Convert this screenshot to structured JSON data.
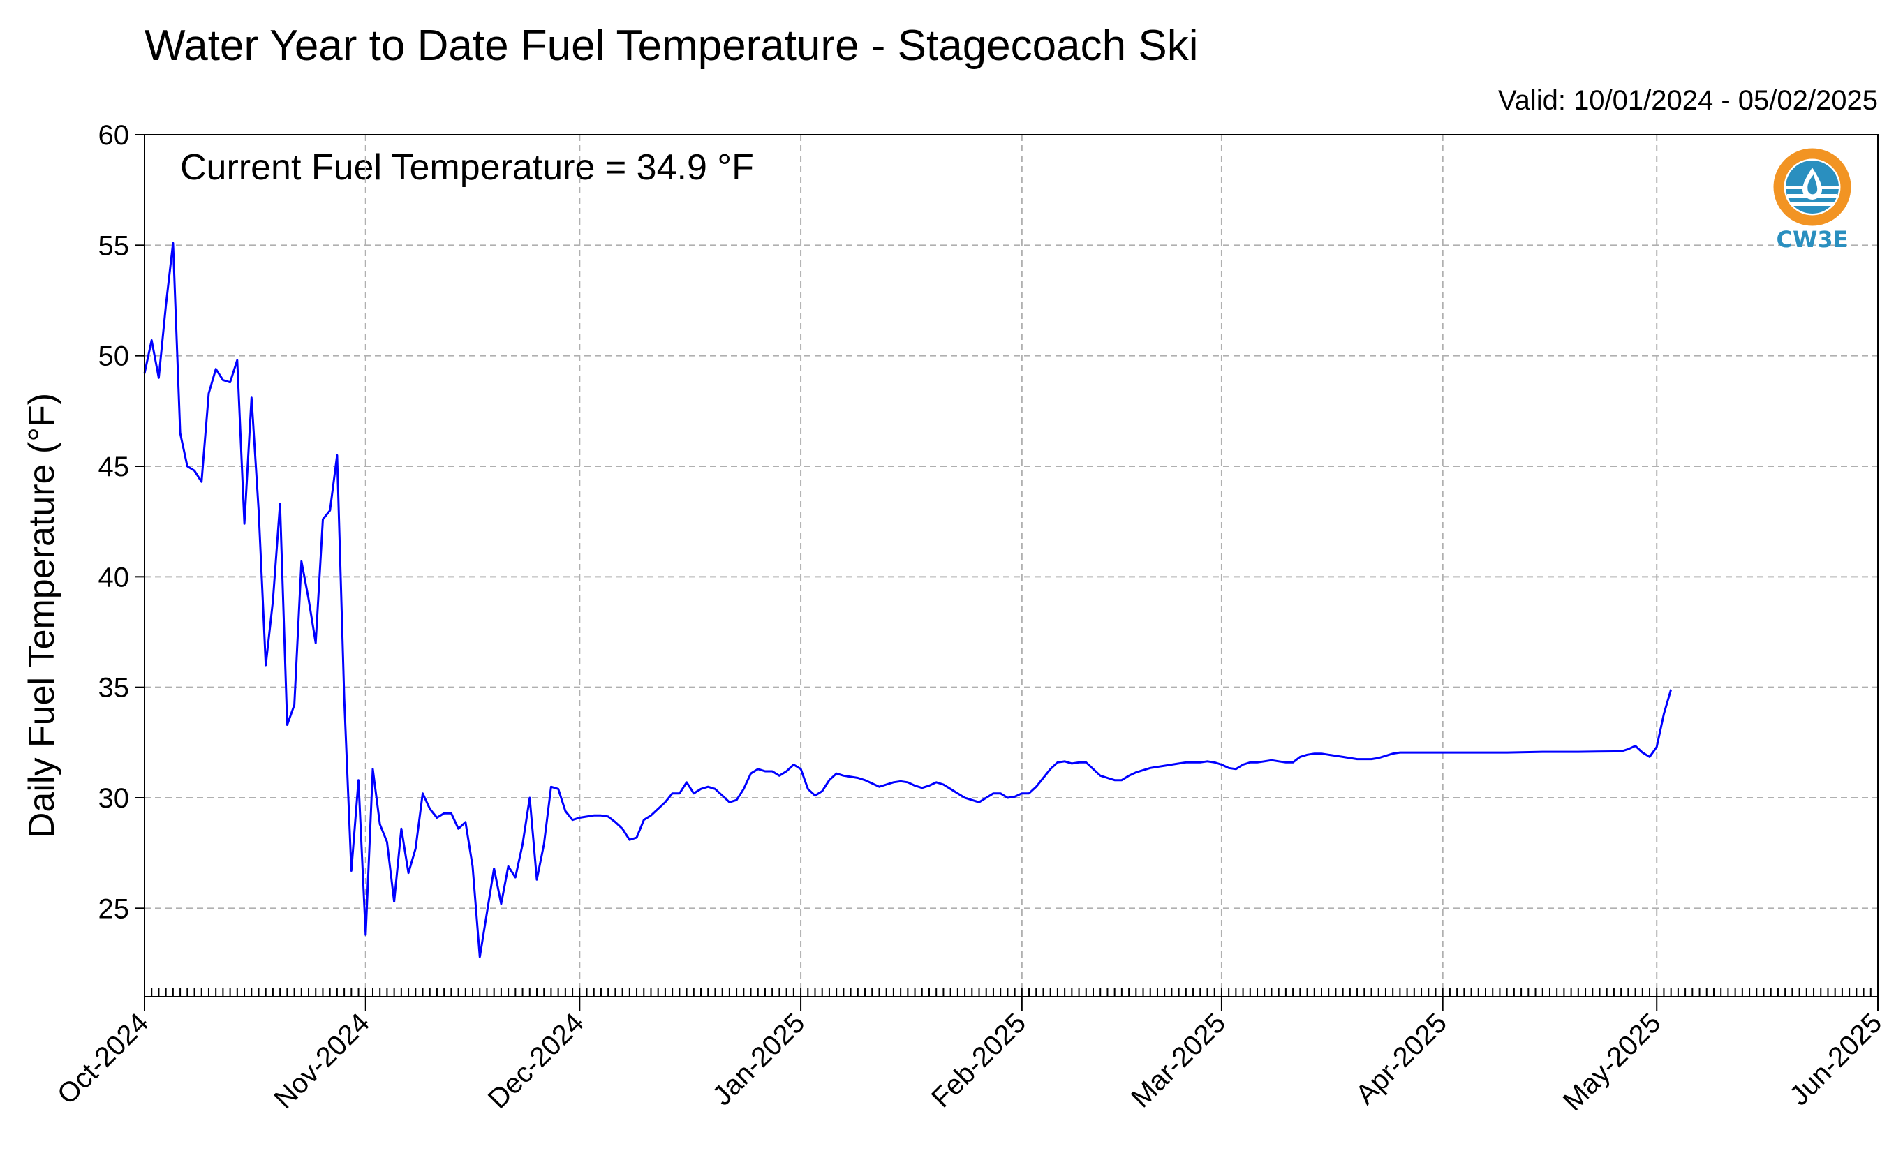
{
  "chart_data": {
    "type": "line",
    "title": "Water Year to Date Fuel Temperature - Stagecoach Ski",
    "subtitle": "Valid: 10/01/2024 - 05/02/2025",
    "annotation": "Current Fuel Temperature = 34.9  °F",
    "ylabel": "Daily Fuel Temperature (°F)",
    "xlabel": "",
    "ylim": [
      21,
      60
    ],
    "yticks": [
      25,
      30,
      35,
      40,
      45,
      50,
      55,
      60
    ],
    "xlim": [
      "2024-10-01",
      "2025-06-01"
    ],
    "xticks": [
      {
        "date": "2024-10-01",
        "label": "Oct-2024"
      },
      {
        "date": "2024-11-01",
        "label": "Nov-2024"
      },
      {
        "date": "2024-12-01",
        "label": "Dec-2024"
      },
      {
        "date": "2025-01-01",
        "label": "Jan-2025"
      },
      {
        "date": "2025-02-01",
        "label": "Feb-2025"
      },
      {
        "date": "2025-03-01",
        "label": "Mar-2025"
      },
      {
        "date": "2025-04-01",
        "label": "Apr-2025"
      },
      {
        "date": "2025-05-01",
        "label": "May-2025"
      },
      {
        "date": "2025-06-01",
        "label": "Jun-2025"
      }
    ],
    "grid": true,
    "line_color": "#0000ff",
    "series": [
      {
        "name": "",
        "points": [
          [
            "2024-10-01",
            49.2
          ],
          [
            "2024-10-02",
            50.7
          ],
          [
            "2024-10-03",
            49.0
          ],
          [
            "2024-10-04",
            52.3
          ],
          [
            "2024-10-05",
            55.1
          ],
          [
            "2024-10-06",
            46.5
          ],
          [
            "2024-10-07",
            45.0
          ],
          [
            "2024-10-08",
            44.8
          ],
          [
            "2024-10-09",
            44.3
          ],
          [
            "2024-10-10",
            48.3
          ],
          [
            "2024-10-11",
            49.4
          ],
          [
            "2024-10-12",
            48.9
          ],
          [
            "2024-10-13",
            48.8
          ],
          [
            "2024-10-14",
            49.8
          ],
          [
            "2024-10-15",
            42.4
          ],
          [
            "2024-10-16",
            48.1
          ],
          [
            "2024-10-17",
            43.0
          ],
          [
            "2024-10-18",
            36.0
          ],
          [
            "2024-10-19",
            38.9
          ],
          [
            "2024-10-20",
            43.3
          ],
          [
            "2024-10-21",
            33.3
          ],
          [
            "2024-10-22",
            34.2
          ],
          [
            "2024-10-23",
            40.7
          ],
          [
            "2024-10-24",
            39.0
          ],
          [
            "2024-10-25",
            37.0
          ],
          [
            "2024-10-26",
            42.6
          ],
          [
            "2024-10-27",
            43.0
          ],
          [
            "2024-10-28",
            45.5
          ],
          [
            "2024-10-29",
            34.5
          ],
          [
            "2024-10-30",
            26.7
          ],
          [
            "2024-10-31",
            30.8
          ],
          [
            "2024-11-01",
            23.8
          ],
          [
            "2024-11-02",
            31.3
          ],
          [
            "2024-11-03",
            28.8
          ],
          [
            "2024-11-04",
            28.0
          ],
          [
            "2024-11-05",
            25.3
          ],
          [
            "2024-11-06",
            28.6
          ],
          [
            "2024-11-07",
            26.6
          ],
          [
            "2024-11-08",
            27.7
          ],
          [
            "2024-11-09",
            30.2
          ],
          [
            "2024-11-10",
            29.5
          ],
          [
            "2024-11-11",
            29.1
          ],
          [
            "2024-11-12",
            29.3
          ],
          [
            "2024-11-13",
            29.3
          ],
          [
            "2024-11-14",
            28.6
          ],
          [
            "2024-11-15",
            28.9
          ],
          [
            "2024-11-16",
            26.9
          ],
          [
            "2024-11-17",
            22.8
          ],
          [
            "2024-11-18",
            24.8
          ],
          [
            "2024-11-19",
            26.8
          ],
          [
            "2024-11-20",
            25.2
          ],
          [
            "2024-11-21",
            26.9
          ],
          [
            "2024-11-22",
            26.4
          ],
          [
            "2024-11-23",
            27.9
          ],
          [
            "2024-11-24",
            30.0
          ],
          [
            "2024-11-25",
            26.3
          ],
          [
            "2024-11-26",
            27.9
          ],
          [
            "2024-11-27",
            30.5
          ],
          [
            "2024-11-28",
            30.4
          ],
          [
            "2024-11-29",
            29.4
          ],
          [
            "2024-11-30",
            29.0
          ],
          [
            "2024-12-01",
            29.1
          ],
          [
            "2024-12-02",
            29.15
          ],
          [
            "2024-12-03",
            29.2
          ],
          [
            "2024-12-04",
            29.2
          ],
          [
            "2024-12-05",
            29.15
          ],
          [
            "2024-12-06",
            28.9
          ],
          [
            "2024-12-07",
            28.6
          ],
          [
            "2024-12-08",
            28.1
          ],
          [
            "2024-12-09",
            28.2
          ],
          [
            "2024-12-10",
            29.0
          ],
          [
            "2024-12-11",
            29.2
          ],
          [
            "2024-12-12",
            29.5
          ],
          [
            "2024-12-13",
            29.8
          ],
          [
            "2024-12-14",
            30.2
          ],
          [
            "2024-12-15",
            30.2
          ],
          [
            "2024-12-16",
            30.7
          ],
          [
            "2024-12-17",
            30.2
          ],
          [
            "2024-12-18",
            30.4
          ],
          [
            "2024-12-19",
            30.5
          ],
          [
            "2024-12-20",
            30.4
          ],
          [
            "2024-12-21",
            30.1
          ],
          [
            "2024-12-22",
            29.8
          ],
          [
            "2024-12-23",
            29.9
          ],
          [
            "2024-12-24",
            30.4
          ],
          [
            "2024-12-25",
            31.1
          ],
          [
            "2024-12-26",
            31.3
          ],
          [
            "2024-12-27",
            31.2
          ],
          [
            "2024-12-28",
            31.2
          ],
          [
            "2024-12-29",
            31.0
          ],
          [
            "2024-12-30",
            31.2
          ],
          [
            "2024-12-31",
            31.5
          ],
          [
            "2025-01-01",
            31.3
          ],
          [
            "2025-01-02",
            30.4
          ],
          [
            "2025-01-03",
            30.1
          ],
          [
            "2025-01-04",
            30.3
          ],
          [
            "2025-01-05",
            30.8
          ],
          [
            "2025-01-06",
            31.1
          ],
          [
            "2025-01-07",
            31.0
          ],
          [
            "2025-01-08",
            30.95
          ],
          [
            "2025-01-09",
            30.9
          ],
          [
            "2025-01-10",
            30.8
          ],
          [
            "2025-01-11",
            30.65
          ],
          [
            "2025-01-12",
            30.5
          ],
          [
            "2025-01-13",
            30.6
          ],
          [
            "2025-01-14",
            30.7
          ],
          [
            "2025-01-15",
            30.75
          ],
          [
            "2025-01-16",
            30.7
          ],
          [
            "2025-01-17",
            30.55
          ],
          [
            "2025-01-18",
            30.45
          ],
          [
            "2025-01-19",
            30.55
          ],
          [
            "2025-01-20",
            30.7
          ],
          [
            "2025-01-21",
            30.6
          ],
          [
            "2025-01-22",
            30.4
          ],
          [
            "2025-01-23",
            30.2
          ],
          [
            "2025-01-24",
            30.0
          ],
          [
            "2025-01-25",
            29.9
          ],
          [
            "2025-01-26",
            29.8
          ],
          [
            "2025-01-27",
            30.0
          ],
          [
            "2025-01-28",
            30.2
          ],
          [
            "2025-01-29",
            30.2
          ],
          [
            "2025-01-30",
            30.0
          ],
          [
            "2025-01-31",
            30.05
          ],
          [
            "2025-02-01",
            30.2
          ],
          [
            "2025-02-02",
            30.2
          ],
          [
            "2025-02-03",
            30.5
          ],
          [
            "2025-02-04",
            30.9
          ],
          [
            "2025-02-05",
            31.3
          ],
          [
            "2025-02-06",
            31.6
          ],
          [
            "2025-02-07",
            31.65
          ],
          [
            "2025-02-08",
            31.55
          ],
          [
            "2025-02-09",
            31.6
          ],
          [
            "2025-02-10",
            31.6
          ],
          [
            "2025-02-11",
            31.3
          ],
          [
            "2025-02-12",
            31.0
          ],
          [
            "2025-02-13",
            30.9
          ],
          [
            "2025-02-14",
            30.8
          ],
          [
            "2025-02-15",
            30.8
          ],
          [
            "2025-02-16",
            31.0
          ],
          [
            "2025-02-17",
            31.15
          ],
          [
            "2025-02-18",
            31.25
          ],
          [
            "2025-02-19",
            31.35
          ],
          [
            "2025-02-20",
            31.4
          ],
          [
            "2025-02-21",
            31.45
          ],
          [
            "2025-02-22",
            31.5
          ],
          [
            "2025-02-23",
            31.55
          ],
          [
            "2025-02-24",
            31.6
          ],
          [
            "2025-02-25",
            31.6
          ],
          [
            "2025-02-26",
            31.6
          ],
          [
            "2025-02-27",
            31.65
          ],
          [
            "2025-02-28",
            31.6
          ],
          [
            "2025-03-01",
            31.5
          ],
          [
            "2025-03-02",
            31.35
          ],
          [
            "2025-03-03",
            31.3
          ],
          [
            "2025-03-04",
            31.5
          ],
          [
            "2025-03-05",
            31.6
          ],
          [
            "2025-03-06",
            31.6
          ],
          [
            "2025-03-07",
            31.65
          ],
          [
            "2025-03-08",
            31.7
          ],
          [
            "2025-03-09",
            31.65
          ],
          [
            "2025-03-10",
            31.6
          ],
          [
            "2025-03-11",
            31.6
          ],
          [
            "2025-03-12",
            31.85
          ],
          [
            "2025-03-13",
            31.95
          ],
          [
            "2025-03-14",
            32.0
          ],
          [
            "2025-03-15",
            32.0
          ],
          [
            "2025-03-16",
            31.95
          ],
          [
            "2025-03-17",
            31.9
          ],
          [
            "2025-03-18",
            31.85
          ],
          [
            "2025-03-19",
            31.8
          ],
          [
            "2025-03-20",
            31.75
          ],
          [
            "2025-03-21",
            31.75
          ],
          [
            "2025-03-22",
            31.75
          ],
          [
            "2025-03-23",
            31.8
          ],
          [
            "2025-03-24",
            31.9
          ],
          [
            "2025-03-25",
            32.0
          ],
          [
            "2025-03-26",
            32.05
          ],
          [
            "2025-03-27",
            32.05
          ],
          [
            "2025-03-28",
            32.05
          ],
          [
            "2025-04-05",
            32.05
          ],
          [
            "2025-04-10",
            32.05
          ],
          [
            "2025-04-15",
            32.08
          ],
          [
            "2025-04-20",
            32.08
          ],
          [
            "2025-04-25",
            32.1
          ],
          [
            "2025-04-26",
            32.1
          ],
          [
            "2025-04-27",
            32.2
          ],
          [
            "2025-04-28",
            32.35
          ],
          [
            "2025-04-29",
            32.05
          ],
          [
            "2025-04-30",
            31.85
          ],
          [
            "2025-05-01",
            32.3
          ],
          [
            "2025-05-02",
            33.8
          ],
          [
            "2025-05-03",
            34.9
          ]
        ]
      }
    ]
  },
  "logo": {
    "text": "CW3E",
    "colors": {
      "orange": "#f29423",
      "blue": "#2a8fbf"
    }
  }
}
